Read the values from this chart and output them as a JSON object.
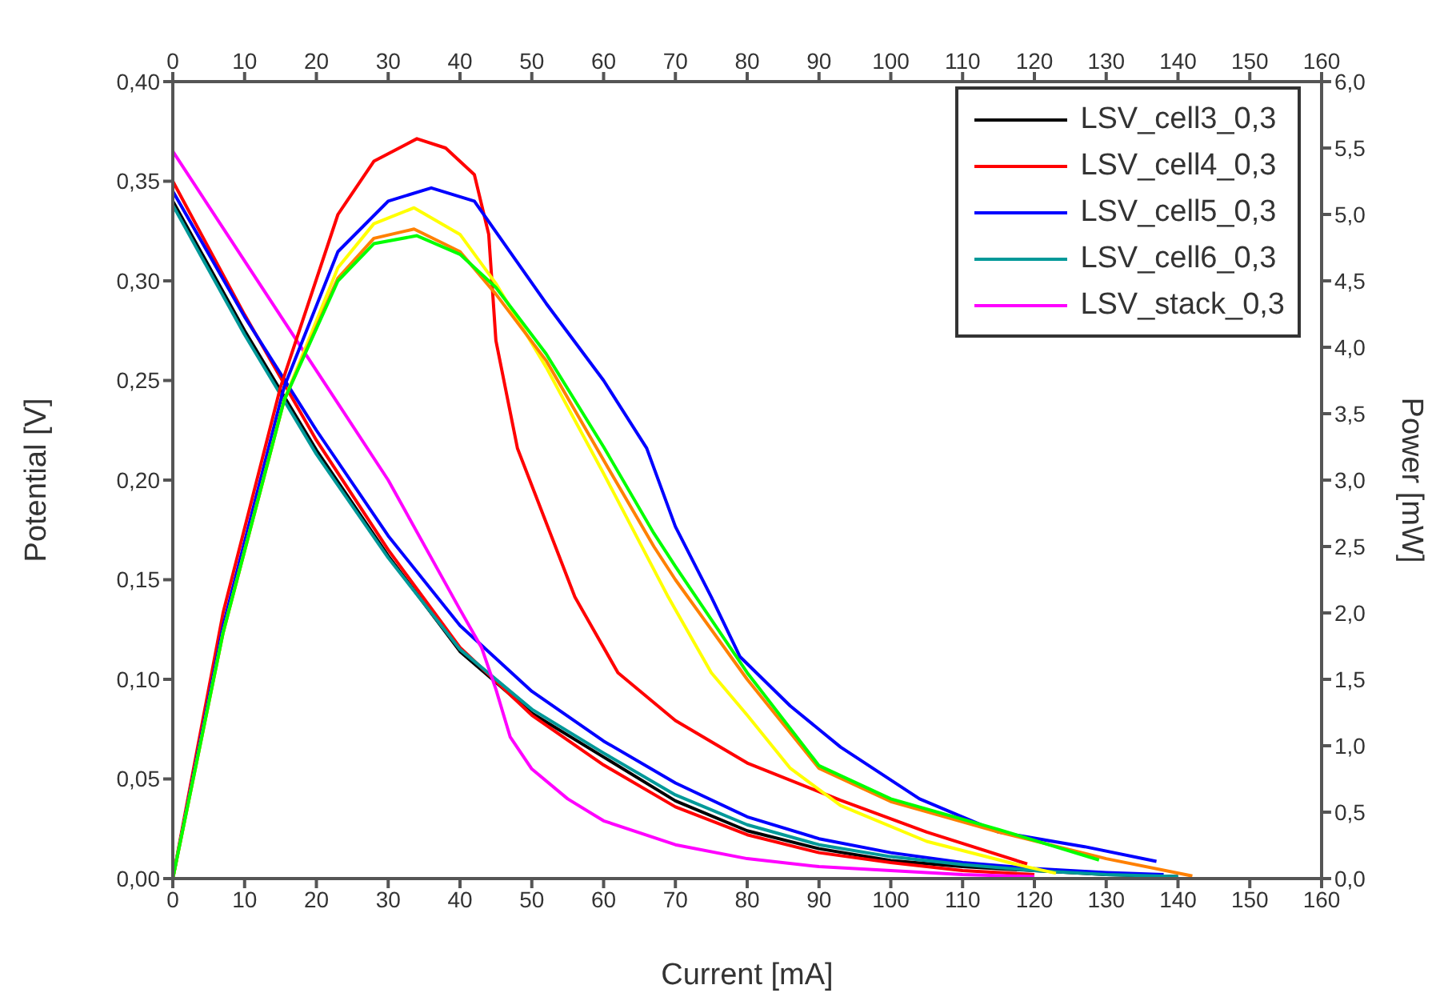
{
  "chart_data": {
    "type": "line",
    "xlabel": "Current [mA]",
    "ylabel": "Potential [V]",
    "y2label": "Power [mW]",
    "xlim": [
      0,
      160
    ],
    "xticks": [
      0,
      10,
      20,
      30,
      40,
      50,
      60,
      70,
      80,
      90,
      100,
      110,
      120,
      130,
      140,
      150,
      160
    ],
    "x2lim": [
      0,
      160
    ],
    "x2ticks": [
      0,
      10,
      20,
      30,
      40,
      50,
      60,
      70,
      80,
      90,
      100,
      110,
      120,
      130,
      140,
      150,
      160
    ],
    "ylim": [
      0,
      0.4
    ],
    "yticks": [
      {
        "value": 0,
        "label": "0,00"
      },
      {
        "value": 0.05,
        "label": "0,05"
      },
      {
        "value": 0.1,
        "label": "0,10"
      },
      {
        "value": 0.15,
        "label": "0,15"
      },
      {
        "value": 0.2,
        "label": "0,20"
      },
      {
        "value": 0.25,
        "label": "0,25"
      },
      {
        "value": 0.3,
        "label": "0,30"
      },
      {
        "value": 0.35,
        "label": "0,35"
      },
      {
        "value": 0.4,
        "label": "0,40"
      }
    ],
    "y2lim": [
      0,
      6
    ],
    "y2ticks": [
      {
        "value": 0,
        "label": "0,0"
      },
      {
        "value": 0.5,
        "label": "0,5"
      },
      {
        "value": 1,
        "label": "1,0"
      },
      {
        "value": 1.5,
        "label": "1,5"
      },
      {
        "value": 2,
        "label": "2,0"
      },
      {
        "value": 2.5,
        "label": "2,5"
      },
      {
        "value": 3,
        "label": "3,0"
      },
      {
        "value": 3.5,
        "label": "3,5"
      },
      {
        "value": 4,
        "label": "4,0"
      },
      {
        "value": 4.5,
        "label": "4,5"
      },
      {
        "value": 5,
        "label": "5,0"
      },
      {
        "value": 5.5,
        "label": "5,5"
      },
      {
        "value": 6,
        "label": "6,0"
      }
    ],
    "legend": "top right",
    "marker": "none",
    "line_style": "solid",
    "series": [
      {
        "name": "LSV_cell3_0,3",
        "color": "#000000",
        "x": [
          0,
          10,
          20,
          30,
          40,
          50,
          60,
          70,
          80,
          90,
          100,
          110,
          120,
          130,
          140
        ],
        "values": [
          0.34,
          0.275,
          0.215,
          0.162,
          0.114,
          0.083,
          0.061,
          0.039,
          0.024,
          0.015,
          0.009,
          0.006,
          0.004,
          0.002,
          0.001
        ]
      },
      {
        "name": "LSV_cell4_0,3",
        "color": "#ff0000",
        "x": [
          0,
          10,
          20,
          30,
          40,
          50,
          60,
          70,
          80,
          90,
          100,
          110,
          120
        ],
        "values": [
          0.35,
          0.283,
          0.22,
          0.165,
          0.116,
          0.082,
          0.057,
          0.036,
          0.022,
          0.013,
          0.008,
          0.004,
          0.002
        ]
      },
      {
        "name": "LSV_cell5_0,3",
        "color": "#0000ff",
        "x": [
          0,
          10,
          20,
          30,
          40,
          50,
          60,
          70,
          80,
          90,
          100,
          110,
          120,
          130,
          138
        ],
        "values": [
          0.345,
          0.282,
          0.225,
          0.172,
          0.127,
          0.094,
          0.069,
          0.048,
          0.031,
          0.02,
          0.013,
          0.008,
          0.005,
          0.003,
          0.002
        ]
      },
      {
        "name": "LSV_cell6_0,3",
        "color": "#009999",
        "x": [
          0,
          10,
          20,
          30,
          40,
          50,
          60,
          70,
          80,
          90,
          100,
          110,
          120,
          130,
          140
        ],
        "values": [
          0.338,
          0.273,
          0.213,
          0.161,
          0.115,
          0.085,
          0.063,
          0.042,
          0.027,
          0.017,
          0.011,
          0.007,
          0.004,
          0.002,
          0.001
        ]
      },
      {
        "name": "LSV_stack_0,3",
        "color": "#ff00ff",
        "x": [
          0,
          10,
          20,
          30,
          40,
          43,
          45,
          47,
          50,
          55,
          60,
          70,
          80,
          90,
          100,
          110,
          120
        ],
        "values": [
          0.365,
          0.31,
          0.255,
          0.2,
          0.135,
          0.116,
          0.095,
          0.071,
          0.055,
          0.04,
          0.029,
          0.017,
          0.01,
          0.006,
          0.004,
          0.002,
          0.001
        ]
      },
      {
        "color": "#ff0000",
        "axis": "y2",
        "x": [
          0,
          7,
          15,
          23,
          28,
          34,
          38,
          42,
          44,
          45,
          48,
          56,
          62,
          70,
          80,
          93,
          105,
          119
        ],
        "values": [
          0,
          2.0,
          3.7,
          5.0,
          5.4,
          5.57,
          5.5,
          5.3,
          4.85,
          4.05,
          3.24,
          2.12,
          1.55,
          1.19,
          0.87,
          0.59,
          0.35,
          0.11
        ]
      },
      {
        "color": "#0000ff",
        "axis": "y2",
        "x": [
          0,
          7,
          15.5,
          23,
          30,
          36,
          42,
          52,
          60,
          66,
          70,
          75,
          79,
          86,
          93,
          104,
          115,
          127,
          137
        ],
        "values": [
          0,
          1.9,
          3.7,
          4.72,
          5.1,
          5.2,
          5.1,
          4.33,
          3.75,
          3.24,
          2.65,
          2.12,
          1.67,
          1.3,
          0.99,
          0.6,
          0.35,
          0.24,
          0.13
        ]
      },
      {
        "color": "#ffff00",
        "axis": "y2",
        "x": [
          0,
          7,
          15.5,
          23,
          28,
          33.6,
          40,
          45,
          52,
          60,
          69,
          75,
          80,
          86,
          93,
          105,
          118,
          123
        ],
        "values": [
          0,
          1.85,
          3.6,
          4.6,
          4.93,
          5.05,
          4.85,
          4.48,
          3.85,
          3.05,
          2.12,
          1.55,
          1.23,
          0.83,
          0.55,
          0.28,
          0.1,
          0.04
        ]
      },
      {
        "color": "#ff8000",
        "axis": "y2",
        "x": [
          0,
          7,
          15.5,
          23,
          28,
          33.6,
          40,
          45,
          52,
          60,
          67,
          70,
          80,
          90,
          100,
          115,
          130,
          142
        ],
        "values": [
          0,
          1.85,
          3.6,
          4.52,
          4.82,
          4.89,
          4.72,
          4.4,
          3.9,
          3.15,
          2.5,
          2.25,
          1.5,
          0.83,
          0.58,
          0.35,
          0.15,
          0.02
        ]
      },
      {
        "color": "#00ff00",
        "axis": "y2",
        "x": [
          0,
          7,
          15.5,
          23,
          28,
          34,
          40,
          45,
          52,
          60,
          67,
          70,
          80,
          90,
          100,
          115,
          129
        ],
        "values": [
          0,
          1.85,
          3.6,
          4.5,
          4.78,
          4.84,
          4.7,
          4.45,
          3.95,
          3.25,
          2.6,
          2.35,
          1.55,
          0.85,
          0.6,
          0.37,
          0.14
        ]
      }
    ]
  }
}
